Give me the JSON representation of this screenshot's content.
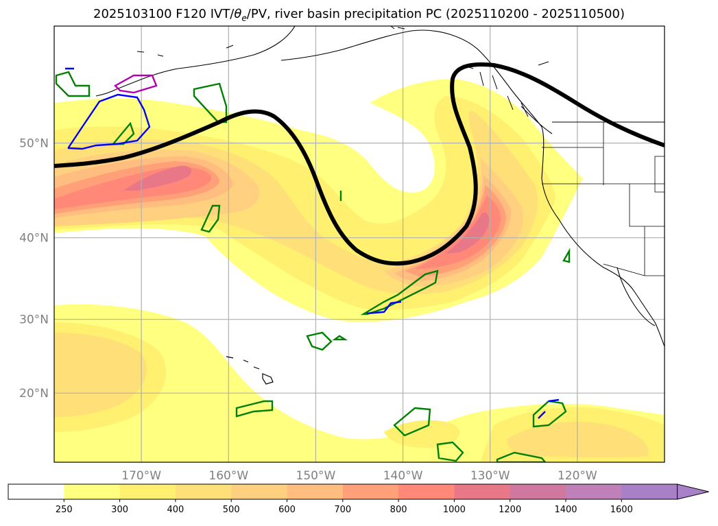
{
  "title_prefix": "2025103100 F120 IVT/",
  "title_theta": "θ",
  "title_theta_sub": "e",
  "title_suffix": "/PV, river basin precipitation PC (2025110200 - 2025110500)",
  "map": {
    "lon_range": [
      -180,
      -110
    ],
    "lat_range": [
      10,
      60
    ],
    "lat_ticks": [
      {
        "value": 50,
        "label": "50°N"
      },
      {
        "value": 40,
        "label": "40°N"
      },
      {
        "value": 30,
        "label": "30°N"
      },
      {
        "value": 20,
        "label": "20°N"
      }
    ],
    "lon_ticks": [
      {
        "value": -170,
        "label": "170°W"
      },
      {
        "value": -160,
        "label": "160°W"
      },
      {
        "value": -150,
        "label": "150°W"
      },
      {
        "value": -140,
        "label": "140°W"
      },
      {
        "value": -130,
        "label": "130°W"
      },
      {
        "value": -120,
        "label": "120°W"
      }
    ],
    "grid": true
  },
  "colorbar": {
    "levels": [
      250,
      300,
      400,
      500,
      600,
      700,
      800,
      1000,
      1200,
      1400,
      1600
    ],
    "colors": [
      "#ffffff",
      "#ffff80",
      "#fff070",
      "#ffdf78",
      "#ffd080",
      "#ffbe80",
      "#ffa078",
      "#ff8878",
      "#e87888",
      "#d078a0",
      "#c080b8",
      "#a880c8"
    ],
    "extend": "max"
  },
  "colors": {
    "pv_contour": "#000000",
    "precip_green": "#008000",
    "precip_blue": "#0000ff",
    "precip_magenta": "#b000b0",
    "coast": "#000000",
    "grid": "#b0b0b0"
  }
}
